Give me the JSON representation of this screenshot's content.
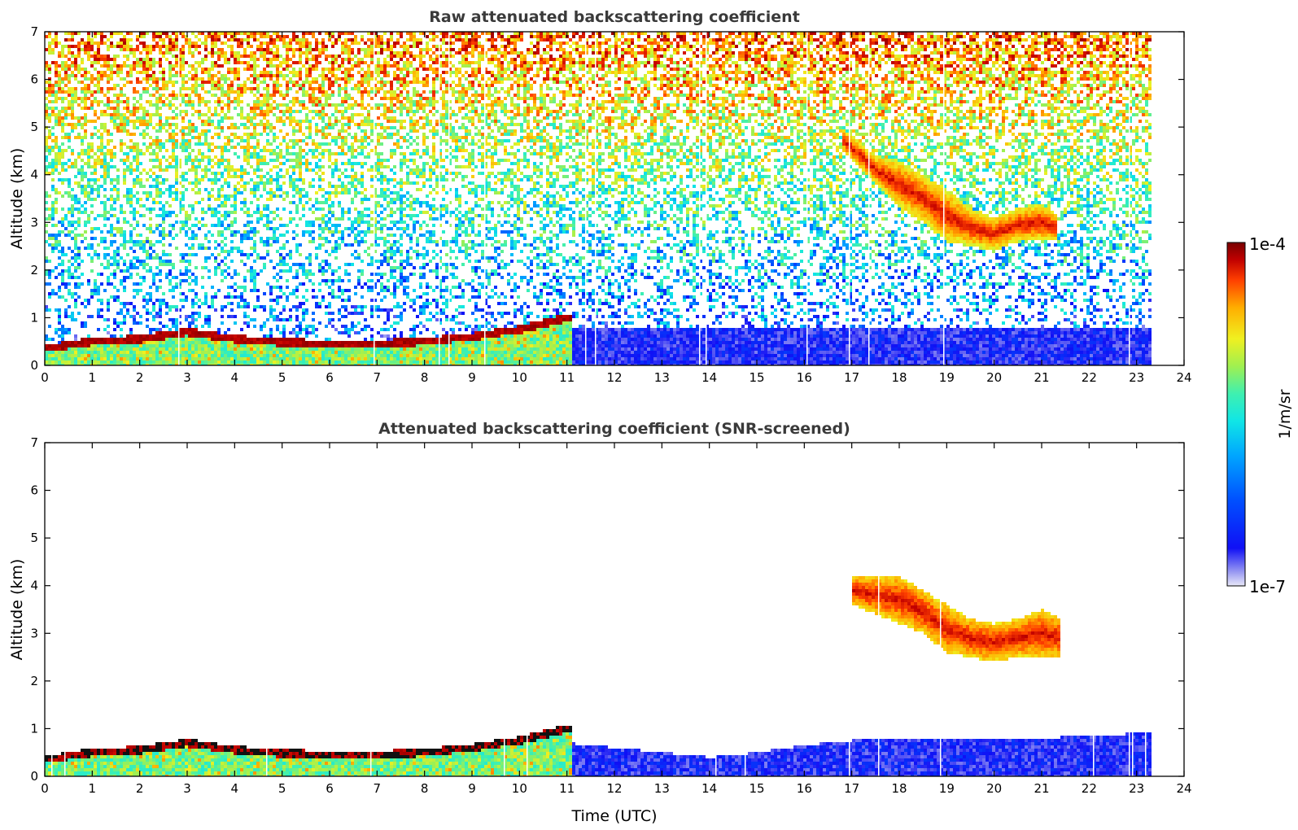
{
  "chart_data": [
    {
      "type": "heatmap",
      "title": "Raw attenuated backscattering coefficient",
      "xlabel": "",
      "ylabel": "Altitude (km)",
      "xlim": [
        0,
        24
      ],
      "ylim": [
        0,
        7
      ],
      "x_ticks": [
        0,
        1,
        2,
        3,
        4,
        5,
        6,
        7,
        8,
        9,
        10,
        11,
        12,
        13,
        14,
        15,
        16,
        17,
        18,
        19,
        20,
        21,
        22,
        23,
        24
      ],
      "y_ticks": [
        0,
        1,
        2,
        3,
        4,
        5,
        6,
        7
      ],
      "features": [
        {
          "name": "boundary layer top",
          "x": [
            0,
            1,
            2,
            3,
            4,
            5,
            6,
            7,
            8,
            9,
            10,
            11
          ],
          "y": [
            0.35,
            0.5,
            0.55,
            0.7,
            0.55,
            0.48,
            0.45,
            0.45,
            0.5,
            0.6,
            0.75,
            1.0
          ]
        },
        {
          "name": "mid-level cloud",
          "x": [
            16.8,
            17.5,
            18,
            18.5,
            19,
            19.5,
            20,
            20.5,
            21,
            21.3
          ],
          "base": [
            4.5,
            3.8,
            3.3,
            3.0,
            2.6,
            2.5,
            2.4,
            2.6,
            2.6,
            2.6
          ],
          "top": [
            5.0,
            4.4,
            4.3,
            4.0,
            3.7,
            3.3,
            3.1,
            3.3,
            3.4,
            3.2
          ]
        }
      ]
    },
    {
      "type": "heatmap",
      "title": "Attenuated backscattering coefficient (SNR-screened)",
      "xlabel": "Time (UTC)",
      "ylabel": "Altitude (km)",
      "xlim": [
        0,
        24
      ],
      "ylim": [
        0,
        7
      ],
      "x_ticks": [
        0,
        1,
        2,
        3,
        4,
        5,
        6,
        7,
        8,
        9,
        10,
        11,
        12,
        13,
        14,
        15,
        16,
        17,
        18,
        19,
        20,
        21,
        22,
        23,
        24
      ],
      "y_ticks": [
        0,
        1,
        2,
        3,
        4,
        5,
        6,
        7
      ],
      "features": [
        {
          "name": "boundary layer top",
          "x": [
            0,
            1,
            2,
            3,
            4,
            5,
            6,
            7,
            8,
            9,
            10,
            11
          ],
          "y": [
            0.35,
            0.5,
            0.55,
            0.7,
            0.55,
            0.48,
            0.45,
            0.45,
            0.5,
            0.6,
            0.75,
            1.0
          ]
        },
        {
          "name": "screened low layer",
          "x": [
            11,
            12,
            13,
            14,
            15,
            16,
            17,
            18,
            19,
            20,
            21,
            22,
            23,
            23.8
          ],
          "top": [
            0.7,
            0.6,
            0.5,
            0.4,
            0.5,
            0.65,
            0.75,
            0.8,
            0.8,
            0.8,
            0.8,
            0.85,
            0.9,
            0.9
          ]
        },
        {
          "name": "mid-level cloud",
          "x": [
            17,
            17.5,
            18,
            18.5,
            19,
            19.5,
            20,
            20.5,
            21,
            21.4
          ],
          "base": [
            3.6,
            3.4,
            3.2,
            3.0,
            2.6,
            2.5,
            2.4,
            2.5,
            2.5,
            2.5
          ],
          "top": [
            4.2,
            4.2,
            4.2,
            3.9,
            3.6,
            3.3,
            3.2,
            3.3,
            3.5,
            3.3
          ]
        }
      ]
    }
  ],
  "colorbar": {
    "label": "1/m/sr",
    "max_label": "1e-4",
    "min_label": "1e-7",
    "min": 1e-07,
    "max": 0.0001,
    "scale": "log",
    "colormap": [
      "#e8e8f8",
      "#9a9af2",
      "#1010f5",
      "#0050ff",
      "#00a6ff",
      "#10e6e6",
      "#3ff0b0",
      "#a0f050",
      "#f0f020",
      "#ffae00",
      "#ff4000",
      "#c00000",
      "#780000"
    ]
  }
}
